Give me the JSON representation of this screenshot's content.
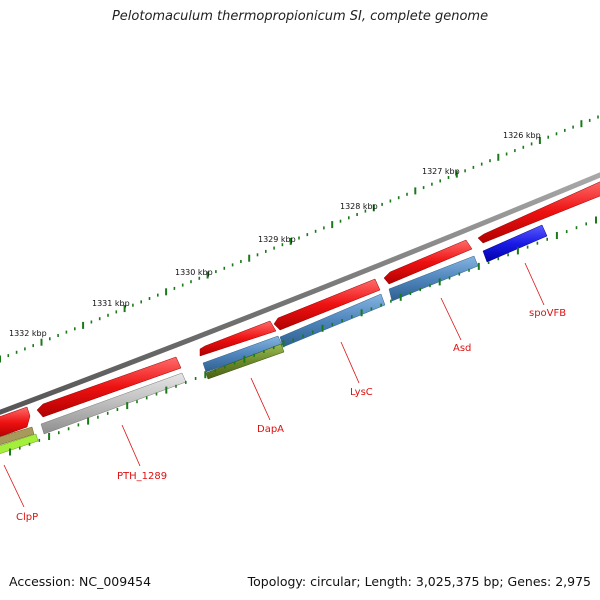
{
  "title": "Pelotomaculum thermopropionicum SI, complete genome",
  "accession_label": "Accession: NC_009454",
  "summary": "Topology: circular; Length: 3,025,375 bp; Genes: 2,975",
  "scale_ticks": [
    "1326 kbp",
    "1327 kbp",
    "1328 kbp",
    "1329 kbp",
    "1330 kbp",
    "1331 kbp",
    "1332 kbp"
  ],
  "gene_labels": [
    "spoVFB",
    "Asd",
    "LysC",
    "DapA",
    "PTH_1289",
    "ClpP"
  ],
  "colors": {
    "backbone": "#777777",
    "cds_forward": "#ee1111",
    "steelblue": "#4f86bd",
    "olive": "#6b8a2a",
    "gray": "#bdbdbd",
    "blue": "#1a1ae6",
    "khaki": "#a89a5a",
    "lime": "#a4ee3c",
    "tick_green": "#1a7a1a",
    "label_red": "#dd1111"
  }
}
